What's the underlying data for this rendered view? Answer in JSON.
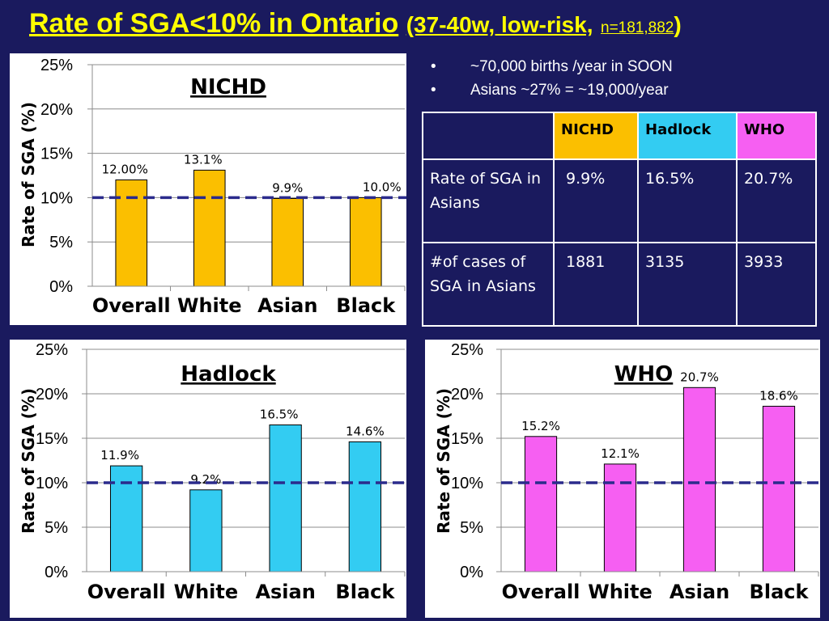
{
  "title": {
    "main": "Rate of SGA<10% in Ontario",
    "sub": "(37-40w, low-risk,",
    "n": "n=181,882",
    "close": ")"
  },
  "bullets": [
    {
      "marker": "•",
      "text": "~70,000 births /year in SOON"
    },
    {
      "marker": "•",
      "text": "Asians ~27% = ~19,000/year"
    }
  ],
  "table": {
    "headers": [
      "",
      "NICHD",
      "Hadlock",
      "WHO"
    ],
    "rows": [
      {
        "label": "Rate of SGA in Asians",
        "values": [
          "9.9%",
          "16.5%",
          "20.7%"
        ]
      },
      {
        "label": "#of cases of SGA in Asians",
        "values": [
          "1881",
          "3135",
          "3933"
        ]
      }
    ]
  },
  "colors": {
    "background": "#1a1a5e",
    "title": "#ffff00",
    "nichd": "#fbbf00",
    "hadlock": "#33ccf2",
    "who": "#f65ff2",
    "reference_line": "#2b2b8c"
  },
  "chart_data": [
    {
      "type": "bar",
      "title": "NICHD",
      "categories": [
        "Overall",
        "White",
        "Asian",
        "Black"
      ],
      "values": [
        12.0,
        13.1,
        9.9,
        10.0
      ],
      "data_labels": [
        "12.00%",
        "13.1%",
        "9.9%",
        "10.0%"
      ],
      "ylabel": "Rate of SGA (%)",
      "xlabel": "",
      "ylim": [
        0,
        25
      ],
      "yticks": [
        "0%",
        "5%",
        "10%",
        "15%",
        "20%",
        "25%"
      ],
      "reference_line": 10,
      "color": "#fbbf00",
      "grid": true
    },
    {
      "type": "bar",
      "title": "Hadlock",
      "categories": [
        "Overall",
        "White",
        "Asian",
        "Black"
      ],
      "values": [
        11.9,
        9.2,
        16.5,
        14.6
      ],
      "data_labels": [
        "11.9%",
        "9.2%",
        "16.5%",
        "14.6%"
      ],
      "ylabel": "Rate of SGA (%)",
      "xlabel": "",
      "ylim": [
        0,
        25
      ],
      "yticks": [
        "0%",
        "5%",
        "10%",
        "15%",
        "20%",
        "25%"
      ],
      "reference_line": 10,
      "color": "#33ccf2",
      "grid": true
    },
    {
      "type": "bar",
      "title": "WHO",
      "categories": [
        "Overall",
        "White",
        "Asian",
        "Black"
      ],
      "values": [
        15.2,
        12.1,
        20.7,
        18.6
      ],
      "data_labels": [
        "15.2%",
        "12.1%",
        "20.7%",
        "18.6%"
      ],
      "ylabel": "Rate of SGA (%)",
      "xlabel": "",
      "ylim": [
        0,
        25
      ],
      "yticks": [
        "0%",
        "5%",
        "10%",
        "15%",
        "20%",
        "25%"
      ],
      "reference_line": 10,
      "color": "#f65ff2",
      "grid": true
    }
  ]
}
